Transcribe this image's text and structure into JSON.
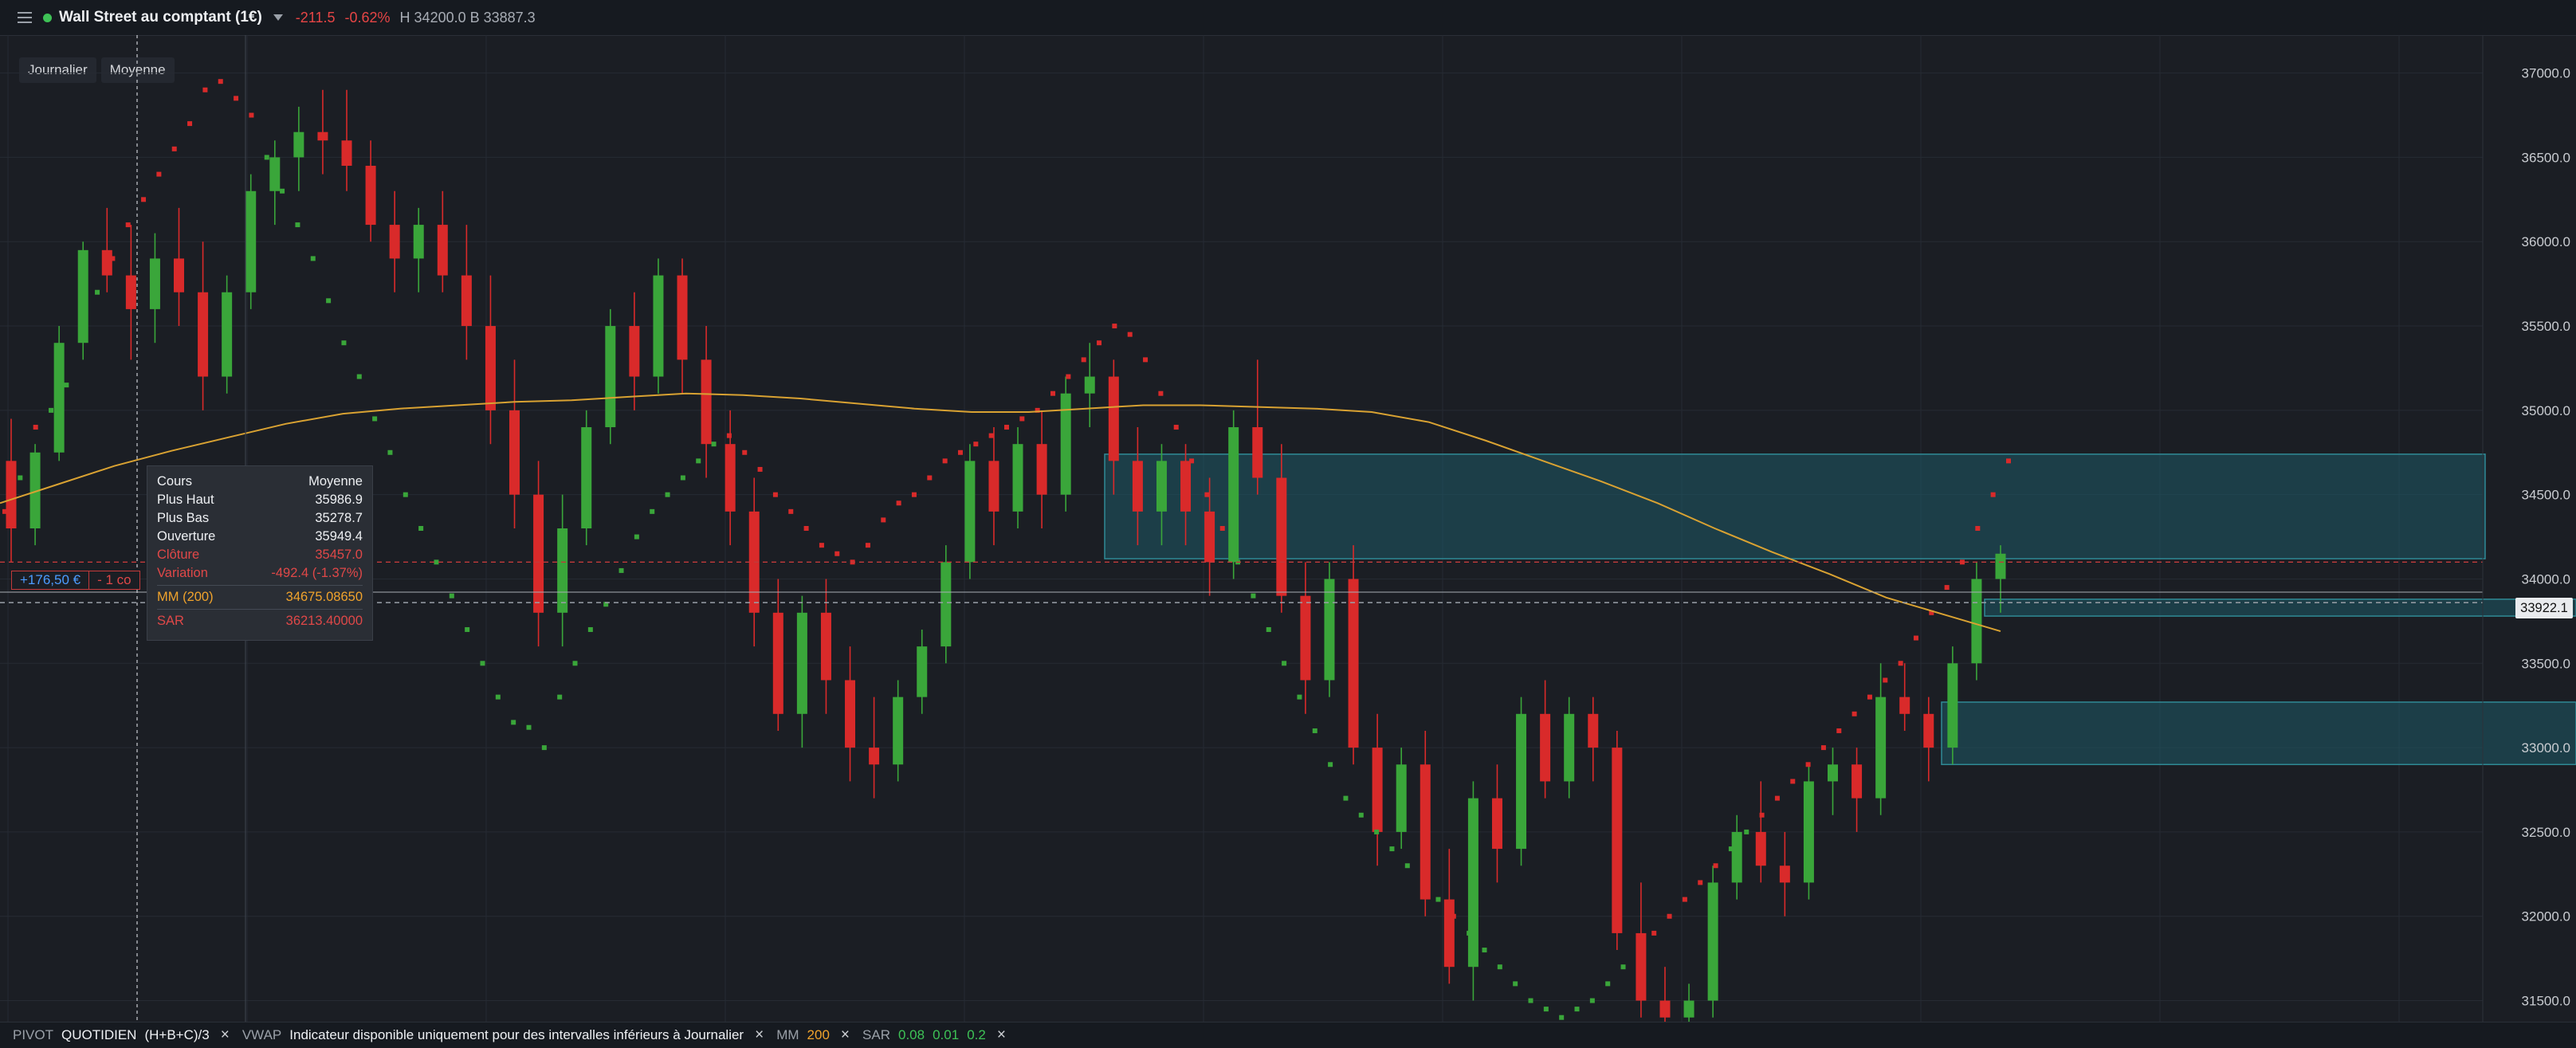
{
  "header": {
    "instrument": "Wall Street au comptant (1€)",
    "change": "-211.5",
    "change_pct": "-0.62%",
    "hl": "H 34200.0 B 33887.3"
  },
  "modes": {
    "period": "Journalier",
    "type": "Moyenne"
  },
  "tooltip": {
    "header_left": "Cours",
    "header_right": "Moyenne",
    "high_label": "Plus Haut",
    "high": "35986.9",
    "low_label": "Plus Bas",
    "low": "35278.7",
    "open_label": "Ouverture",
    "open": "35949.4",
    "close_label": "Clôture",
    "close": "35457.0",
    "var_label": "Variation",
    "var": "-492.4 (-1.37%)",
    "ma_label": "MM (200)",
    "ma": "34675.08650",
    "sar_label": "SAR",
    "sar": "36213.40000"
  },
  "position": {
    "pnl": "+176,50 €",
    "qty": "- 1 co"
  },
  "current_price": "33922.1",
  "indicators": {
    "pivot_label": "PIVOT",
    "pivot_period": "QUOTIDIEN",
    "pivot_formula": "(H+B+C)/3",
    "vwap_label": "VWAP",
    "vwap_note": "Indicateur disponible uniquement pour des intervalles inférieurs à Journalier",
    "mm_label": "MM",
    "mm_value": "200",
    "sar_label": "SAR",
    "sar_p1": "0.08",
    "sar_p2": "0.01",
    "sar_p3": "0.2",
    "close_icon": "×"
  },
  "colors": {
    "up": "#3aa63a",
    "down": "#d92a2a",
    "ma": "#d9a232",
    "zone": "#1d5a66"
  },
  "chart_data": {
    "type": "candlestick",
    "y_axis": {
      "min": 31375,
      "max": 37225,
      "ticks": [
        "37000.0",
        "36500.0",
        "36000.0",
        "35500.0",
        "35000.0",
        "34500.0",
        "34000.0",
        "33500.0",
        "33000.0",
        "32500.0",
        "32000.0",
        "31500.0"
      ]
    },
    "ma200": [
      34450,
      34560,
      34670,
      34760,
      34840,
      34920,
      34980,
      35010,
      35030,
      35050,
      35060,
      35080,
      35100,
      35090,
      35070,
      35040,
      35010,
      34990,
      34990,
      35010,
      35030,
      35030,
      35020,
      35010,
      34990,
      34930,
      34820,
      34700,
      34580,
      34450,
      34300,
      34160,
      34030,
      33890,
      33790,
      33690
    ],
    "sar": [
      34400,
      34600,
      34900,
      35000,
      35150,
      35450,
      35700,
      35900,
      36100,
      36250,
      36400,
      36550,
      36700,
      36900,
      36950,
      36850,
      36750,
      36500,
      36300,
      36100,
      35900,
      35650,
      35400,
      35200,
      34950,
      34750,
      34500,
      34300,
      34100,
      33900,
      33700,
      33500,
      33300,
      33150,
      33120,
      33000,
      33300,
      33500,
      33700,
      33850,
      34050,
      34250,
      34400,
      34500,
      34600,
      34700,
      34800,
      34850,
      34750,
      34650,
      34500,
      34400,
      34300,
      34200,
      34150,
      34100,
      34200,
      34350,
      34450,
      34500,
      34600,
      34700,
      34750,
      34800,
      34850,
      34900,
      34950,
      35000,
      35100,
      35200,
      35300,
      35400,
      35500,
      35450,
      35300,
      35100,
      34900,
      34700,
      34500,
      34300,
      34100,
      33900,
      33700,
      33500,
      33300,
      33100,
      32900,
      32700,
      32600,
      32500,
      32400,
      32300,
      32200,
      32100,
      32000,
      31900,
      31800,
      31700,
      31600,
      31500,
      31450,
      31400,
      31450,
      31500,
      31600,
      31700,
      31800,
      31900,
      32000,
      32100,
      32200,
      32300,
      32400,
      32500,
      32600,
      32700,
      32800,
      32900,
      33000,
      33100,
      33200,
      33300,
      33400,
      33500,
      33650,
      33800,
      33950,
      34100,
      34300,
      34500,
      34700
    ],
    "candles_ohlc": [
      [
        34700,
        34950,
        34100,
        34300
      ],
      [
        34300,
        34800,
        34200,
        34750
      ],
      [
        34750,
        35500,
        34700,
        35400
      ],
      [
        35400,
        36000,
        35300,
        35950
      ],
      [
        35950,
        36200,
        35700,
        35800
      ],
      [
        35800,
        36100,
        35300,
        35600
      ],
      [
        35600,
        36050,
        35400,
        35900
      ],
      [
        35900,
        36200,
        35500,
        35700
      ],
      [
        35700,
        36000,
        35000,
        35200
      ],
      [
        35200,
        35800,
        35100,
        35700
      ],
      [
        35700,
        36400,
        35600,
        36300
      ],
      [
        36300,
        36600,
        36100,
        36500
      ],
      [
        36500,
        36800,
        36300,
        36650
      ],
      [
        36650,
        36900,
        36400,
        36600
      ],
      [
        36600,
        36900,
        36300,
        36450
      ],
      [
        36450,
        36600,
        36000,
        36100
      ],
      [
        36100,
        36300,
        35700,
        35900
      ],
      [
        35900,
        36200,
        35700,
        36100
      ],
      [
        36100,
        36300,
        35700,
        35800
      ],
      [
        35800,
        36100,
        35300,
        35500
      ],
      [
        35500,
        35800,
        34800,
        35000
      ],
      [
        35000,
        35300,
        34300,
        34500
      ],
      [
        34500,
        34700,
        33600,
        33800
      ],
      [
        33800,
        34500,
        33600,
        34300
      ],
      [
        34300,
        35000,
        34200,
        34900
      ],
      [
        34900,
        35600,
        34800,
        35500
      ],
      [
        35500,
        35700,
        35000,
        35200
      ],
      [
        35200,
        35900,
        35100,
        35800
      ],
      [
        35800,
        35900,
        35100,
        35300
      ],
      [
        35300,
        35500,
        34600,
        34800
      ],
      [
        34800,
        35000,
        34200,
        34400
      ],
      [
        34400,
        34600,
        33600,
        33800
      ],
      [
        33800,
        34000,
        33100,
        33200
      ],
      [
        33200,
        33900,
        33000,
        33800
      ],
      [
        33800,
        34000,
        33200,
        33400
      ],
      [
        33400,
        33600,
        32800,
        33000
      ],
      [
        33000,
        33300,
        32700,
        32900
      ],
      [
        32900,
        33400,
        32800,
        33300
      ],
      [
        33300,
        33700,
        33200,
        33600
      ],
      [
        33600,
        34200,
        33500,
        34100
      ],
      [
        34100,
        34800,
        34000,
        34700
      ],
      [
        34700,
        34900,
        34200,
        34400
      ],
      [
        34400,
        34900,
        34300,
        34800
      ],
      [
        34800,
        35000,
        34300,
        34500
      ],
      [
        34500,
        35200,
        34400,
        35100
      ],
      [
        35100,
        35400,
        34900,
        35200
      ],
      [
        35200,
        35300,
        34500,
        34700
      ],
      [
        34700,
        34900,
        34200,
        34400
      ],
      [
        34400,
        34800,
        34200,
        34700
      ],
      [
        34700,
        34800,
        34200,
        34400
      ],
      [
        34400,
        34600,
        33900,
        34100
      ],
      [
        34100,
        35000,
        34000,
        34900
      ],
      [
        34900,
        35300,
        34500,
        34600
      ],
      [
        34600,
        34800,
        33800,
        33900
      ],
      [
        33900,
        34100,
        33200,
        33400
      ],
      [
        33400,
        34100,
        33300,
        34000
      ],
      [
        34000,
        34200,
        32900,
        33000
      ],
      [
        33000,
        33200,
        32300,
        32500
      ],
      [
        32500,
        33000,
        32400,
        32900
      ],
      [
        32900,
        33100,
        32000,
        32100
      ],
      [
        32100,
        32400,
        31600,
        31700
      ],
      [
        31700,
        32800,
        31500,
        32700
      ],
      [
        32700,
        32900,
        32200,
        32400
      ],
      [
        32400,
        33300,
        32300,
        33200
      ],
      [
        33200,
        33400,
        32700,
        32800
      ],
      [
        32800,
        33300,
        32700,
        33200
      ],
      [
        33200,
        33300,
        32800,
        33000
      ],
      [
        33000,
        33100,
        31800,
        31900
      ],
      [
        31900,
        32200,
        31400,
        31500
      ],
      [
        31500,
        31700,
        31300,
        31400
      ],
      [
        31400,
        31600,
        31300,
        31500
      ],
      [
        31500,
        32300,
        31400,
        32200
      ],
      [
        32200,
        32600,
        32100,
        32500
      ],
      [
        32500,
        32800,
        32200,
        32300
      ],
      [
        32300,
        32500,
        32000,
        32200
      ],
      [
        32200,
        32900,
        32100,
        32800
      ],
      [
        32800,
        33000,
        32600,
        32900
      ],
      [
        32900,
        33000,
        32500,
        32700
      ],
      [
        32700,
        33500,
        32600,
        33300
      ],
      [
        33300,
        33500,
        33100,
        33200
      ],
      [
        33200,
        33300,
        32800,
        33000
      ],
      [
        33000,
        33600,
        32900,
        33500
      ],
      [
        33500,
        34100,
        33400,
        34000
      ],
      [
        34000,
        34200,
        33800,
        34150
      ]
    ]
  }
}
